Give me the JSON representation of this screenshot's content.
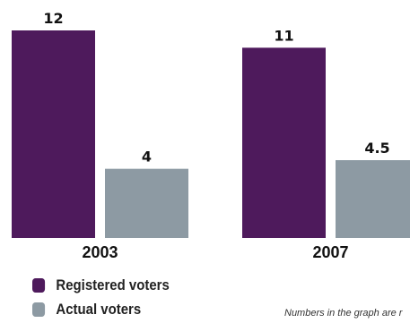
{
  "chart_data": {
    "type": "bar",
    "categories": [
      "2003",
      "2007"
    ],
    "series": [
      {
        "name": "Registered voters",
        "color": "#4e1a5c",
        "values": [
          12,
          11
        ],
        "labels": [
          "12",
          "11"
        ]
      },
      {
        "name": "Actual voters",
        "color": "#8d9aa3",
        "values": [
          4,
          4.5
        ],
        "labels": [
          "4",
          "4.5"
        ]
      }
    ],
    "ylim": [
      0,
      12
    ],
    "grid": false,
    "legend_position": "bottom-left"
  },
  "note": "Numbers in the graph are r"
}
